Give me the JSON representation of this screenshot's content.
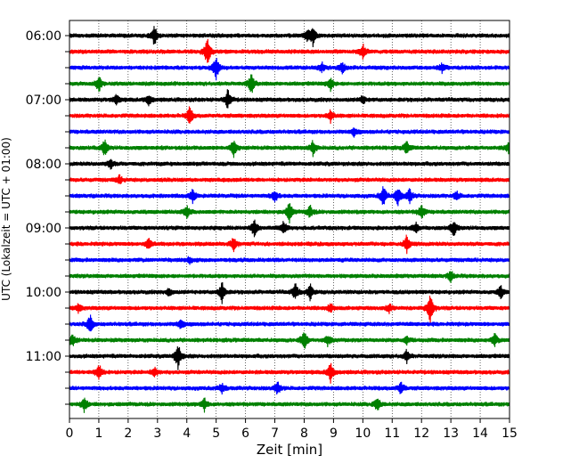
{
  "chart_data": {
    "type": "line",
    "title": "",
    "xlabel": "Zeit  [min]",
    "ylabel": "UTC (Lokalzeit = UTC + 01:00)",
    "xlim": [
      0,
      15
    ],
    "x_ticks": [
      "0",
      "1",
      "2",
      "3",
      "4",
      "5",
      "6",
      "7",
      "8",
      "9",
      "10",
      "11",
      "12",
      "13",
      "14",
      "15"
    ],
    "y_tick_labels": [
      "06:00",
      "07:00",
      "08:00",
      "09:00",
      "10:00",
      "11:00"
    ],
    "grid": "vertical dotted",
    "colors": {
      "black": "#000000",
      "red": "#ff0000",
      "blue": "#0000ff",
      "green": "#008000"
    },
    "series": [
      {
        "start": "06:00",
        "color": "black",
        "events": [
          [
            2.9,
            1.0
          ],
          [
            8.1,
            0.5
          ],
          [
            8.3,
            0.9
          ]
        ]
      },
      {
        "start": "06:15",
        "color": "red",
        "events": [
          [
            4.7,
            1.4
          ],
          [
            10.0,
            0.7
          ]
        ]
      },
      {
        "start": "06:30",
        "color": "blue",
        "events": [
          [
            5.0,
            1.3
          ],
          [
            8.6,
            0.5
          ],
          [
            9.3,
            0.5
          ],
          [
            12.7,
            0.4
          ]
        ]
      },
      {
        "start": "06:45",
        "color": "green",
        "events": [
          [
            1.0,
            0.8
          ],
          [
            6.2,
            1.0
          ],
          [
            8.9,
            0.6
          ]
        ]
      },
      {
        "start": "07:00",
        "color": "black",
        "events": [
          [
            1.6,
            0.5
          ],
          [
            2.7,
            0.5
          ],
          [
            5.4,
            1.0
          ],
          [
            10.0,
            0.4
          ]
        ]
      },
      {
        "start": "07:15",
        "color": "red",
        "events": [
          [
            4.1,
            0.9
          ],
          [
            8.9,
            0.6
          ]
        ]
      },
      {
        "start": "07:30",
        "color": "blue",
        "events": [
          [
            9.7,
            0.4
          ]
        ]
      },
      {
        "start": "07:45",
        "color": "green",
        "events": [
          [
            1.2,
            0.8
          ],
          [
            5.6,
            0.8
          ],
          [
            8.3,
            0.7
          ],
          [
            11.5,
            0.6
          ],
          [
            15.0,
            0.7
          ]
        ]
      },
      {
        "start": "08:00",
        "color": "black",
        "events": [
          [
            1.4,
            0.5
          ]
        ]
      },
      {
        "start": "08:15",
        "color": "red",
        "events": [
          [
            1.7,
            0.4
          ]
        ]
      },
      {
        "start": "08:30",
        "color": "blue",
        "events": [
          [
            4.2,
            0.6
          ],
          [
            7.0,
            0.6
          ],
          [
            10.7,
            1.0
          ],
          [
            11.2,
            1.0
          ],
          [
            11.6,
            0.7
          ],
          [
            13.2,
            0.4
          ]
        ]
      },
      {
        "start": "08:45",
        "color": "green",
        "events": [
          [
            4.0,
            0.6
          ],
          [
            7.5,
            1.0
          ],
          [
            8.2,
            0.6
          ],
          [
            12.0,
            0.7
          ]
        ]
      },
      {
        "start": "09:00",
        "color": "black",
        "events": [
          [
            6.3,
            0.9
          ],
          [
            7.3,
            0.6
          ],
          [
            11.8,
            0.5
          ],
          [
            13.1,
            0.8
          ]
        ]
      },
      {
        "start": "09:15",
        "color": "red",
        "events": [
          [
            2.7,
            0.5
          ],
          [
            5.6,
            0.7
          ],
          [
            11.5,
            0.9
          ]
        ]
      },
      {
        "start": "09:30",
        "color": "blue",
        "events": [
          [
            4.1,
            0.3
          ]
        ]
      },
      {
        "start": "09:45",
        "color": "green",
        "events": [
          [
            13.0,
            0.5
          ]
        ]
      },
      {
        "start": "10:00",
        "color": "black",
        "events": [
          [
            3.4,
            0.4
          ],
          [
            5.2,
            1.0
          ],
          [
            7.7,
            0.8
          ],
          [
            8.2,
            0.8
          ],
          [
            14.7,
            0.6
          ]
        ]
      },
      {
        "start": "10:15",
        "color": "red",
        "events": [
          [
            0.3,
            0.4
          ],
          [
            8.9,
            0.4
          ],
          [
            10.9,
            0.4
          ],
          [
            12.3,
            1.6
          ]
        ]
      },
      {
        "start": "10:30",
        "color": "blue",
        "events": [
          [
            0.7,
            0.9
          ],
          [
            3.8,
            0.5
          ]
        ]
      },
      {
        "start": "10:45",
        "color": "green",
        "events": [
          [
            0.1,
            0.6
          ],
          [
            8.0,
            1.0
          ],
          [
            8.8,
            0.5
          ],
          [
            11.5,
            0.4
          ],
          [
            14.5,
            0.6
          ]
        ]
      },
      {
        "start": "11:00",
        "color": "black",
        "events": [
          [
            3.7,
            1.3
          ],
          [
            11.5,
            0.6
          ]
        ]
      },
      {
        "start": "11:15",
        "color": "red",
        "events": [
          [
            1.0,
            0.9
          ],
          [
            2.9,
            0.5
          ],
          [
            8.9,
            1.0
          ]
        ]
      },
      {
        "start": "11:30",
        "color": "blue",
        "events": [
          [
            5.2,
            0.5
          ],
          [
            7.1,
            0.6
          ],
          [
            11.3,
            0.6
          ]
        ]
      },
      {
        "start": "11:45",
        "color": "green",
        "events": [
          [
            0.5,
            0.7
          ],
          [
            4.6,
            0.6
          ],
          [
            10.5,
            0.7
          ]
        ]
      }
    ]
  }
}
